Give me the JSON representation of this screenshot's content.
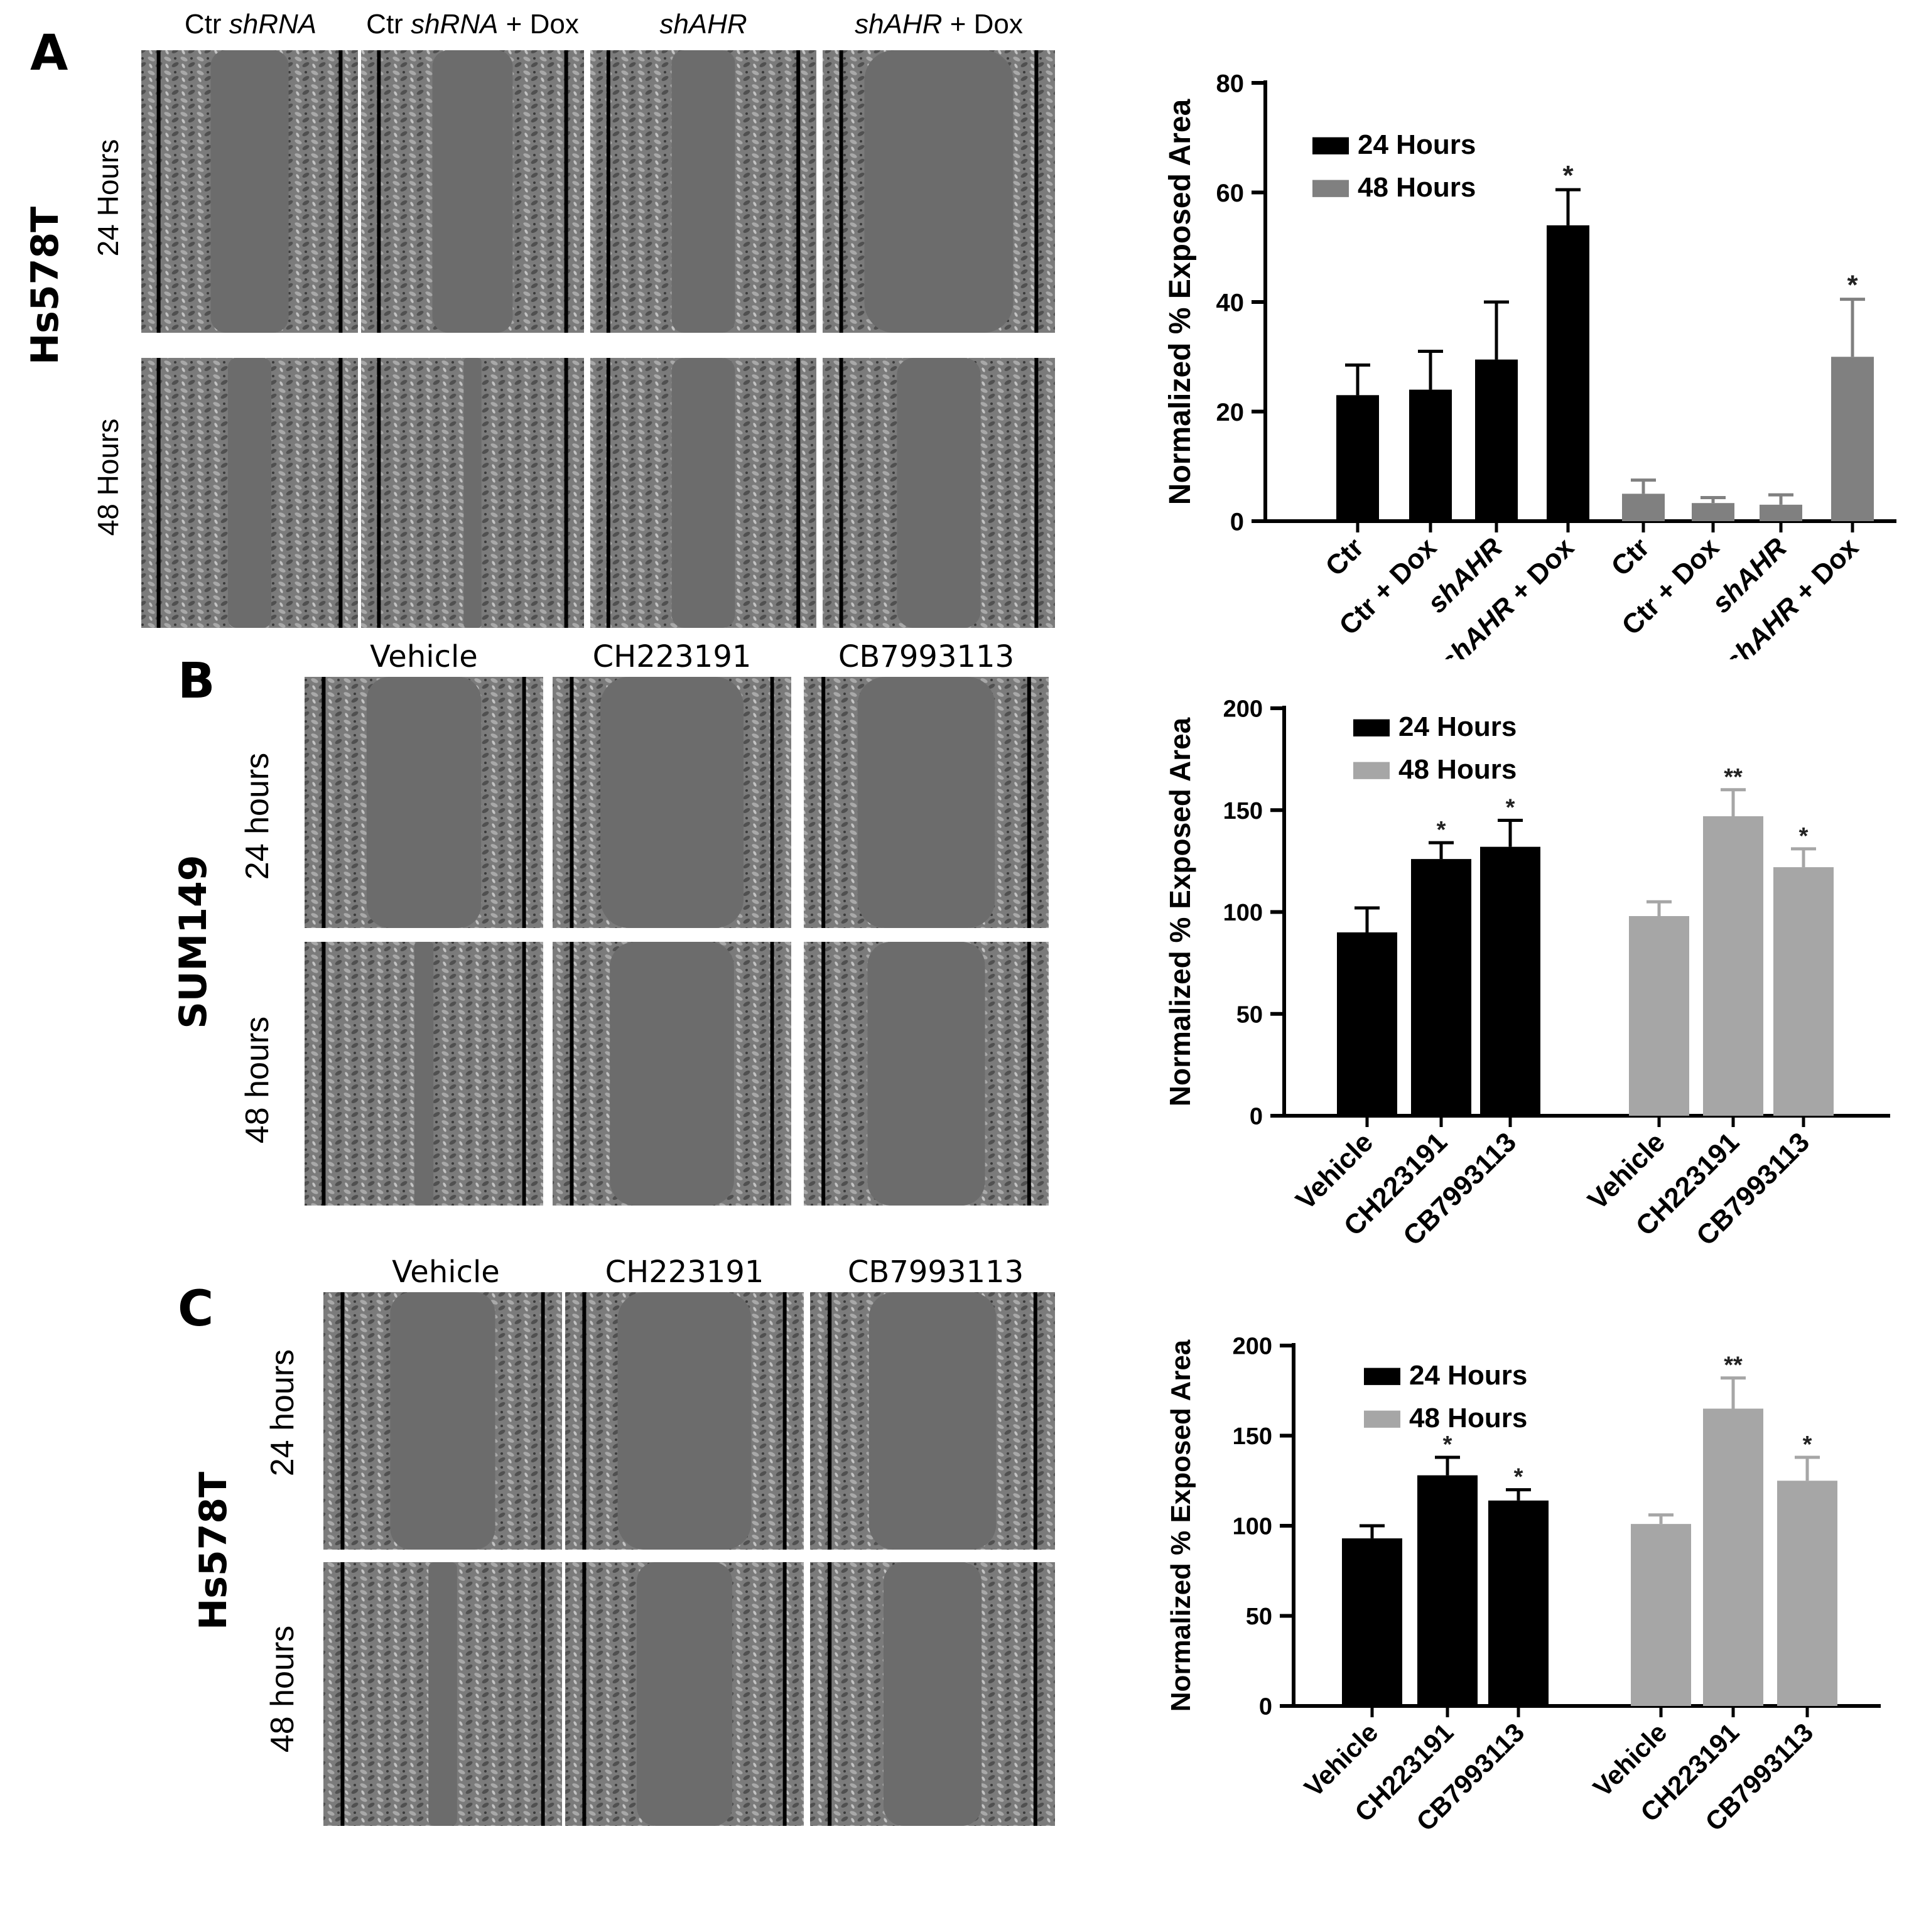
{
  "panels": [
    {
      "letter": "A",
      "cell_line": "Hs578T",
      "columns": [
        "Ctr shRNA",
        "Ctr shRNA + Dox",
        "shAHR",
        "shAHR + Dox"
      ],
      "column_parts": [
        [
          {
            "t": "Ctr ",
            "i": false
          },
          {
            "t": "shRNA",
            "i": true
          }
        ],
        [
          {
            "t": "Ctr ",
            "i": false
          },
          {
            "t": "shRNA",
            "i": true
          },
          {
            "t": " + Dox",
            "i": false
          }
        ],
        [
          {
            "t": "shAHR",
            "i": true
          }
        ],
        [
          {
            "t": "shAHR",
            "i": true
          },
          {
            "t": " + Dox",
            "i": false
          }
        ]
      ],
      "rows": [
        "24 Hours",
        "48 Hours"
      ],
      "gap_widths": [
        [
          0.45,
          0.45,
          0.35,
          0.8
        ],
        [
          0.25,
          0.1,
          0.35,
          0.45
        ]
      ]
    },
    {
      "letter": "B",
      "cell_line": "SUM149",
      "columns": [
        "Vehicle",
        "CH223191",
        "CB7993113"
      ],
      "rows": [
        "24 hours",
        "48 hours"
      ],
      "gap_widths": [
        [
          0.6,
          0.75,
          0.7
        ],
        [
          0.1,
          0.65,
          0.6
        ]
      ]
    },
    {
      "letter": "C",
      "cell_line": "Hs578T",
      "columns": [
        "Vehicle",
        "CH223191",
        "CB7993113"
      ],
      "rows": [
        "24 hours",
        "48 hours"
      ],
      "gap_widths": [
        [
          0.55,
          0.7,
          0.65
        ],
        [
          0.15,
          0.5,
          0.5
        ]
      ]
    }
  ],
  "chart_data": [
    {
      "type": "bar",
      "ylabel": "Normalized % Exposed Area",
      "ylim": [
        0,
        80
      ],
      "yticks": [
        0,
        20,
        40,
        60,
        80
      ],
      "legend": [
        "24 Hours",
        "48 Hours"
      ],
      "legend_placement": "top-left",
      "colors": [
        "#000000",
        "#808080"
      ],
      "groups": [
        {
          "series": "24 Hours",
          "categories": [
            "Ctr",
            "Ctr + Dox",
            "shAHR",
            "shAHR + Dox"
          ],
          "values": [
            23,
            24,
            29.5,
            54
          ],
          "errors": [
            5.5,
            7,
            10.5,
            6.5
          ],
          "sig": [
            "",
            "",
            "",
            "*"
          ]
        },
        {
          "series": "48 Hours",
          "categories": [
            "Ctr",
            "Ctr + Dox",
            "shAHR",
            "shAHR + Dox"
          ],
          "values": [
            5,
            3.3,
            3,
            30
          ],
          "errors": [
            2.5,
            1,
            1.8,
            10.5
          ],
          "sig": [
            "",
            "",
            "",
            "*"
          ]
        }
      ]
    },
    {
      "type": "bar",
      "ylabel": "Normalized % Exposed Area",
      "ylim": [
        0,
        200
      ],
      "yticks": [
        0,
        50,
        100,
        150,
        200
      ],
      "legend": [
        "24 Hours",
        "48 Hours"
      ],
      "legend_placement": "top-left",
      "colors": [
        "#000000",
        "#a6a6a6"
      ],
      "groups": [
        {
          "series": "24 Hours",
          "categories": [
            "Vehicle",
            "CH223191",
            "CB7993113"
          ],
          "values": [
            90,
            126,
            132
          ],
          "errors": [
            12,
            8,
            13
          ],
          "sig": [
            "",
            "*",
            "*"
          ]
        },
        {
          "series": "48 Hours",
          "categories": [
            "Vehicle",
            "CH223191",
            "CB7993113"
          ],
          "values": [
            98,
            147,
            122
          ],
          "errors": [
            7,
            13,
            9
          ],
          "sig": [
            "",
            "**",
            "*"
          ]
        }
      ]
    },
    {
      "type": "bar",
      "ylabel": "Normalized % Exposed Area",
      "ylim": [
        0,
        200
      ],
      "yticks": [
        0,
        50,
        100,
        150,
        200
      ],
      "legend": [
        "24 Hours",
        "48 Hours"
      ],
      "legend_placement": "top-left",
      "colors": [
        "#000000",
        "#a6a6a6"
      ],
      "groups": [
        {
          "series": "24 Hours",
          "categories": [
            "Vehicle",
            "CH223191",
            "CB7993113"
          ],
          "values": [
            93,
            128,
            114
          ],
          "errors": [
            7,
            10,
            6
          ],
          "sig": [
            "",
            "*",
            "*"
          ]
        },
        {
          "series": "48 Hours",
          "categories": [
            "Vehicle",
            "CH223191",
            "CB7993113"
          ],
          "values": [
            101,
            165,
            125
          ],
          "errors": [
            5,
            17,
            13
          ],
          "sig": [
            "",
            "**",
            "*"
          ]
        }
      ]
    }
  ]
}
